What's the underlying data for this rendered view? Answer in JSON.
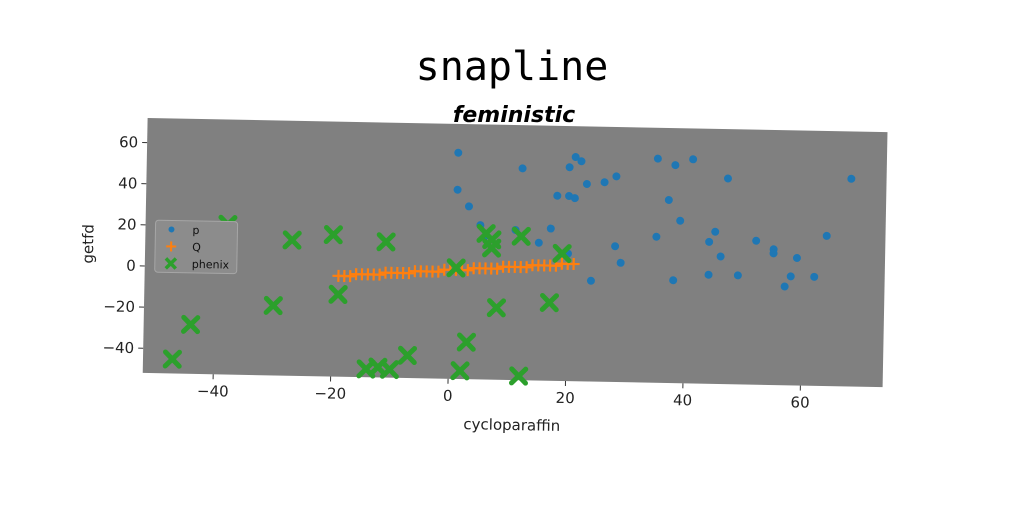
{
  "chart_data": {
    "type": "scatter",
    "title": "snapline",
    "subtitle": "feministic",
    "xlabel": "cycloparaffin",
    "ylabel": "getfd",
    "xlim": [
      -52,
      74
    ],
    "ylim": [
      -52,
      72
    ],
    "xticks": [
      -40,
      -20,
      0,
      20,
      40,
      60
    ],
    "yticks": [
      -40,
      -20,
      0,
      20,
      40,
      60
    ],
    "xtick_labels": [
      "−40",
      "−20",
      "0",
      "20",
      "40",
      "60"
    ],
    "ytick_labels": [
      "−40",
      "−20",
      "0",
      "20",
      "40",
      "60"
    ],
    "grid": false,
    "legend_position": "center-left",
    "plot_background": "#808080",
    "series": [
      {
        "name": "p",
        "marker": "circle",
        "color": "#1f77b4",
        "points": [
          [
            1,
            58
          ],
          [
            1,
            40
          ],
          [
            3,
            32
          ],
          [
            5,
            23
          ],
          [
            6,
            18
          ],
          [
            11,
            21
          ],
          [
            12,
            51
          ],
          [
            15,
            15
          ],
          [
            17,
            22
          ],
          [
            18,
            38
          ],
          [
            20,
            38
          ],
          [
            20,
            52
          ],
          [
            20,
            10
          ],
          [
            21,
            57
          ],
          [
            21,
            37
          ],
          [
            22,
            55
          ],
          [
            23,
            44
          ],
          [
            24,
            -3
          ],
          [
            26,
            45
          ],
          [
            28,
            14
          ],
          [
            28,
            48
          ],
          [
            29,
            6
          ],
          [
            35,
            57
          ],
          [
            35,
            19
          ],
          [
            37,
            37
          ],
          [
            38,
            -2
          ],
          [
            38,
            54
          ],
          [
            39,
            27
          ],
          [
            41,
            57
          ],
          [
            44,
            17
          ],
          [
            44,
            1
          ],
          [
            45,
            22
          ],
          [
            46,
            10
          ],
          [
            47,
            48
          ],
          [
            49,
            1
          ],
          [
            52,
            18
          ],
          [
            55,
            14
          ],
          [
            55,
            12
          ],
          [
            57,
            -4
          ],
          [
            58,
            1
          ],
          [
            59,
            10
          ],
          [
            62,
            1
          ],
          [
            64,
            21
          ],
          [
            68,
            49
          ]
        ]
      },
      {
        "name": "Q",
        "marker": "plus",
        "color": "#ff7f0e",
        "points": [
          [
            -19,
            -3
          ],
          [
            -18,
            -3
          ],
          [
            -17,
            -3
          ],
          [
            -16,
            -2
          ],
          [
            -15,
            -2
          ],
          [
            -14,
            -2
          ],
          [
            -13,
            -2
          ],
          [
            -12,
            -2
          ],
          [
            -11,
            -1
          ],
          [
            -10,
            -1
          ],
          [
            -9,
            -1
          ],
          [
            -8,
            -1
          ],
          [
            -7,
            -1
          ],
          [
            -6,
            0
          ],
          [
            -5,
            0
          ],
          [
            -4,
            0
          ],
          [
            -3,
            0
          ],
          [
            -2,
            0
          ],
          [
            -1,
            1
          ],
          [
            0,
            1
          ],
          [
            1,
            1
          ],
          [
            2,
            1
          ],
          [
            3,
            1
          ],
          [
            4,
            2
          ],
          [
            5,
            2
          ],
          [
            6,
            2
          ],
          [
            7,
            2
          ],
          [
            8,
            2
          ],
          [
            9,
            3
          ],
          [
            10,
            3
          ],
          [
            11,
            3
          ],
          [
            12,
            3
          ],
          [
            13,
            3
          ],
          [
            14,
            4
          ],
          [
            15,
            4
          ],
          [
            16,
            4
          ],
          [
            17,
            4
          ],
          [
            18,
            4
          ],
          [
            19,
            5
          ],
          [
            20,
            5
          ],
          [
            21,
            5
          ]
        ]
      },
      {
        "name": "phenix",
        "marker": "x",
        "color": "#2ca02c",
        "points": [
          [
            -47,
            -45
          ],
          [
            -44,
            -28
          ],
          [
            -38,
            21
          ],
          [
            -30,
            -18
          ],
          [
            -27,
            14
          ],
          [
            -20,
            17
          ],
          [
            -19,
            -12
          ],
          [
            -14,
            -48
          ],
          [
            -12,
            -47
          ],
          [
            -11,
            14
          ],
          [
            -10,
            -48
          ],
          [
            -7,
            -41
          ],
          [
            1,
            2
          ],
          [
            2,
            -48
          ],
          [
            3,
            -34
          ],
          [
            6,
            19
          ],
          [
            7,
            16
          ],
          [
            7,
            12
          ],
          [
            8,
            -17
          ],
          [
            12,
            18
          ],
          [
            12,
            -50
          ],
          [
            17,
            -14
          ],
          [
            19,
            10
          ]
        ]
      }
    ]
  }
}
